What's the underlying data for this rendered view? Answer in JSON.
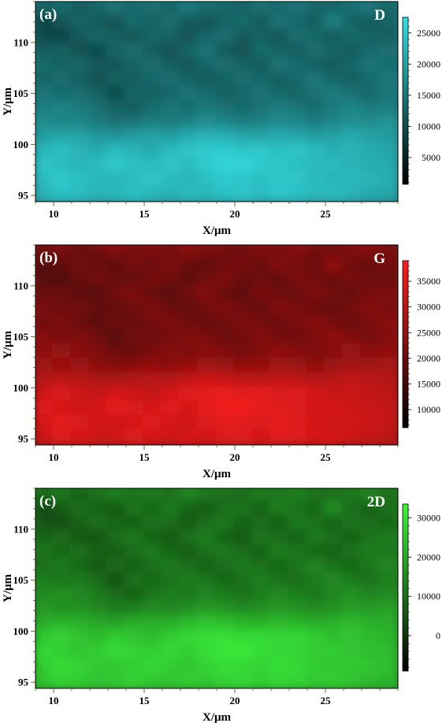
{
  "chart_data": [
    {
      "type": "heatmap",
      "panel_label": "(a)",
      "band_label": "D",
      "xlabel": "X/μm",
      "ylabel": "Y/μm",
      "xlim": [
        9,
        29
      ],
      "ylim": [
        94.4,
        114
      ],
      "x_ticks": [
        "10",
        "15",
        "20",
        "25"
      ],
      "y_ticks": [
        "95",
        "100",
        "105",
        "110"
      ],
      "colorbar": {
        "range": [
          700,
          27500
        ],
        "ticks": [
          "5000",
          "10000",
          "15000",
          "20000",
          "25000"
        ],
        "tick_values": [
          5000,
          10000,
          15000,
          20000,
          25000
        ],
        "low_color": "#000000",
        "high_color": "#33e0e4"
      },
      "intensity_rows_top_to_bottom": [
        [
          0.42,
          0.48,
          0.4,
          0.45,
          0.52,
          0.46,
          0.5,
          0.44,
          0.55,
          0.48,
          0.46,
          0.43,
          0.5,
          0.47,
          0.52,
          0.45,
          0.44,
          0.49,
          0.53,
          0.46
        ],
        [
          0.3,
          0.38,
          0.45,
          0.4,
          0.36,
          0.48,
          0.42,
          0.5,
          0.4,
          0.37,
          0.44,
          0.48,
          0.4,
          0.52,
          0.46,
          0.42,
          0.58,
          0.44,
          0.4,
          0.45
        ],
        [
          0.34,
          0.3,
          0.4,
          0.46,
          0.42,
          0.38,
          0.47,
          0.44,
          0.36,
          0.45,
          0.5,
          0.4,
          0.44,
          0.38,
          0.5,
          0.46,
          0.4,
          0.48,
          0.44,
          0.42
        ],
        [
          0.4,
          0.44,
          0.36,
          0.33,
          0.45,
          0.5,
          0.4,
          0.36,
          0.46,
          0.52,
          0.4,
          0.36,
          0.48,
          0.44,
          0.4,
          0.5,
          0.45,
          0.4,
          0.47,
          0.5
        ],
        [
          0.48,
          0.42,
          0.46,
          0.4,
          0.38,
          0.44,
          0.5,
          0.42,
          0.38,
          0.46,
          0.5,
          0.44,
          0.4,
          0.52,
          0.48,
          0.42,
          0.4,
          0.46,
          0.52,
          0.48
        ],
        [
          0.44,
          0.5,
          0.42,
          0.36,
          0.44,
          0.4,
          0.46,
          0.5,
          0.44,
          0.4,
          0.44,
          0.5,
          0.46,
          0.42,
          0.48,
          0.54,
          0.46,
          0.42,
          0.48,
          0.54
        ],
        [
          0.52,
          0.46,
          0.5,
          0.44,
          0.32,
          0.46,
          0.42,
          0.46,
          0.52,
          0.48,
          0.42,
          0.46,
          0.52,
          0.46,
          0.44,
          0.5,
          0.56,
          0.5,
          0.46,
          0.52
        ],
        [
          0.56,
          0.6,
          0.54,
          0.5,
          0.44,
          0.4,
          0.48,
          0.52,
          0.48,
          0.54,
          0.5,
          0.46,
          0.5,
          0.56,
          0.52,
          0.48,
          0.54,
          0.6,
          0.54,
          0.56
        ],
        [
          0.62,
          0.58,
          0.6,
          0.55,
          0.5,
          0.52,
          0.56,
          0.54,
          0.58,
          0.62,
          0.6,
          0.56,
          0.58,
          0.62,
          0.6,
          0.56,
          0.6,
          0.64,
          0.62,
          0.66
        ],
        [
          0.7,
          0.74,
          0.72,
          0.68,
          0.66,
          0.7,
          0.72,
          0.7,
          0.76,
          0.8,
          0.78,
          0.74,
          0.72,
          0.76,
          0.74,
          0.7,
          0.72,
          0.76,
          0.72,
          0.7
        ],
        [
          0.82,
          0.86,
          0.8,
          0.76,
          0.84,
          0.8,
          0.76,
          0.84,
          0.88,
          0.9,
          0.92,
          0.88,
          0.9,
          0.86,
          0.88,
          0.84,
          0.78,
          0.8,
          0.76,
          0.74
        ],
        [
          0.88,
          0.84,
          0.8,
          0.84,
          0.9,
          0.86,
          0.84,
          0.88,
          0.84,
          0.9,
          0.94,
          0.96,
          0.9,
          0.88,
          0.86,
          0.82,
          0.84,
          0.8,
          0.78,
          0.76
        ],
        [
          0.84,
          0.9,
          0.86,
          0.82,
          0.8,
          0.84,
          0.88,
          0.84,
          0.8,
          0.86,
          0.9,
          0.88,
          0.86,
          0.9,
          0.88,
          0.84,
          0.8,
          0.82,
          0.8,
          0.78
        ],
        [
          0.8,
          0.86,
          0.84,
          0.8,
          0.82,
          0.86,
          0.82,
          0.8,
          0.84,
          0.82,
          0.86,
          0.88,
          0.84,
          0.88,
          0.86,
          0.82,
          0.84,
          0.8,
          0.76,
          0.74
        ]
      ]
    },
    {
      "type": "heatmap",
      "panel_label": "(b)",
      "band_label": "G",
      "xlabel": "X/μm",
      "ylabel": "Y/μm",
      "xlim": [
        9,
        29
      ],
      "ylim": [
        94.4,
        114
      ],
      "x_ticks": [
        "10",
        "15",
        "20",
        "25"
      ],
      "y_ticks": [
        "95",
        "100",
        "105",
        "110"
      ],
      "colorbar": {
        "range": [
          6500,
          39000
        ],
        "ticks": [
          "10000",
          "15000",
          "20000",
          "25000",
          "30000",
          "35000"
        ],
        "tick_values": [
          10000,
          15000,
          20000,
          25000,
          30000,
          35000
        ],
        "low_color": "#000000",
        "high_color": "#ff1e1e"
      },
      "intensity_rows_top_to_bottom": [
        [
          0.42,
          0.48,
          0.4,
          0.45,
          0.52,
          0.46,
          0.5,
          0.44,
          0.55,
          0.48,
          0.46,
          0.43,
          0.5,
          0.47,
          0.52,
          0.45,
          0.44,
          0.49,
          0.53,
          0.46
        ],
        [
          0.3,
          0.38,
          0.45,
          0.4,
          0.36,
          0.48,
          0.42,
          0.5,
          0.4,
          0.37,
          0.44,
          0.48,
          0.4,
          0.52,
          0.46,
          0.42,
          0.58,
          0.44,
          0.4,
          0.45
        ],
        [
          0.34,
          0.3,
          0.4,
          0.46,
          0.42,
          0.38,
          0.47,
          0.44,
          0.36,
          0.45,
          0.5,
          0.4,
          0.44,
          0.38,
          0.5,
          0.46,
          0.4,
          0.48,
          0.44,
          0.42
        ],
        [
          0.4,
          0.44,
          0.36,
          0.33,
          0.45,
          0.5,
          0.4,
          0.36,
          0.46,
          0.52,
          0.4,
          0.36,
          0.48,
          0.44,
          0.4,
          0.5,
          0.45,
          0.4,
          0.47,
          0.5
        ],
        [
          0.48,
          0.42,
          0.46,
          0.4,
          0.38,
          0.44,
          0.5,
          0.42,
          0.38,
          0.46,
          0.5,
          0.44,
          0.4,
          0.52,
          0.48,
          0.42,
          0.4,
          0.46,
          0.52,
          0.48
        ],
        [
          0.44,
          0.5,
          0.42,
          0.36,
          0.44,
          0.4,
          0.46,
          0.5,
          0.44,
          0.4,
          0.44,
          0.5,
          0.46,
          0.42,
          0.48,
          0.54,
          0.46,
          0.42,
          0.48,
          0.54
        ],
        [
          0.52,
          0.46,
          0.5,
          0.44,
          0.32,
          0.46,
          0.42,
          0.46,
          0.52,
          0.48,
          0.42,
          0.46,
          0.52,
          0.46,
          0.44,
          0.5,
          0.56,
          0.5,
          0.46,
          0.52
        ],
        [
          0.56,
          0.6,
          0.54,
          0.5,
          0.44,
          0.4,
          0.48,
          0.52,
          0.48,
          0.54,
          0.5,
          0.46,
          0.5,
          0.56,
          0.52,
          0.48,
          0.54,
          0.6,
          0.54,
          0.56
        ],
        [
          0.62,
          0.58,
          0.6,
          0.55,
          0.5,
          0.52,
          0.56,
          0.54,
          0.58,
          0.62,
          0.6,
          0.56,
          0.58,
          0.62,
          0.6,
          0.56,
          0.6,
          0.64,
          0.62,
          0.66
        ],
        [
          0.7,
          0.74,
          0.72,
          0.68,
          0.66,
          0.7,
          0.72,
          0.7,
          0.76,
          0.8,
          0.78,
          0.74,
          0.72,
          0.76,
          0.74,
          0.7,
          0.72,
          0.76,
          0.72,
          0.7
        ],
        [
          0.82,
          0.86,
          0.8,
          0.76,
          0.84,
          0.8,
          0.76,
          0.84,
          0.88,
          0.9,
          0.92,
          0.88,
          0.9,
          0.86,
          0.88,
          0.84,
          0.78,
          0.8,
          0.76,
          0.74
        ],
        [
          0.88,
          0.84,
          0.8,
          0.84,
          0.9,
          0.86,
          0.84,
          0.88,
          0.84,
          0.9,
          0.94,
          0.96,
          0.9,
          0.88,
          0.86,
          0.82,
          0.84,
          0.8,
          0.78,
          0.76
        ],
        [
          0.84,
          0.9,
          0.86,
          0.82,
          0.8,
          0.84,
          0.88,
          0.84,
          0.8,
          0.86,
          0.9,
          0.88,
          0.86,
          0.9,
          0.88,
          0.84,
          0.8,
          0.82,
          0.8,
          0.78
        ],
        [
          0.8,
          0.86,
          0.84,
          0.8,
          0.82,
          0.86,
          0.82,
          0.8,
          0.84,
          0.82,
          0.86,
          0.88,
          0.84,
          0.88,
          0.86,
          0.82,
          0.84,
          0.8,
          0.76,
          0.74
        ]
      ]
    },
    {
      "type": "heatmap",
      "panel_label": "(c)",
      "band_label": "2D",
      "xlabel": "X/μm",
      "ylabel": "Y/μm",
      "xlim": [
        9,
        29
      ],
      "ylim": [
        94.4,
        114
      ],
      "x_ticks": [
        "10",
        "15",
        "20",
        "25"
      ],
      "y_ticks": [
        "95",
        "100",
        "105",
        "110"
      ],
      "colorbar": {
        "range": [
          -9000,
          33500
        ],
        "ticks": [
          "0",
          "10000",
          "20000",
          "30000"
        ],
        "tick_values": [
          0,
          10000,
          20000,
          30000
        ],
        "low_color": "#000000",
        "high_color": "#3cf53c"
      },
      "intensity_rows_top_to_bottom": [
        [
          0.42,
          0.48,
          0.4,
          0.45,
          0.52,
          0.46,
          0.5,
          0.44,
          0.55,
          0.48,
          0.46,
          0.43,
          0.5,
          0.47,
          0.52,
          0.45,
          0.44,
          0.49,
          0.53,
          0.46
        ],
        [
          0.3,
          0.38,
          0.45,
          0.4,
          0.36,
          0.48,
          0.42,
          0.5,
          0.4,
          0.37,
          0.44,
          0.48,
          0.4,
          0.52,
          0.46,
          0.42,
          0.58,
          0.44,
          0.4,
          0.45
        ],
        [
          0.34,
          0.3,
          0.4,
          0.46,
          0.42,
          0.38,
          0.47,
          0.44,
          0.36,
          0.45,
          0.5,
          0.4,
          0.44,
          0.38,
          0.5,
          0.46,
          0.4,
          0.48,
          0.44,
          0.42
        ],
        [
          0.4,
          0.44,
          0.36,
          0.33,
          0.45,
          0.5,
          0.4,
          0.36,
          0.46,
          0.52,
          0.4,
          0.36,
          0.48,
          0.44,
          0.4,
          0.5,
          0.45,
          0.4,
          0.47,
          0.5
        ],
        [
          0.48,
          0.42,
          0.46,
          0.4,
          0.38,
          0.44,
          0.5,
          0.42,
          0.38,
          0.46,
          0.5,
          0.44,
          0.4,
          0.52,
          0.48,
          0.42,
          0.4,
          0.46,
          0.52,
          0.48
        ],
        [
          0.44,
          0.5,
          0.42,
          0.36,
          0.44,
          0.4,
          0.46,
          0.5,
          0.44,
          0.4,
          0.44,
          0.5,
          0.46,
          0.42,
          0.48,
          0.54,
          0.46,
          0.42,
          0.48,
          0.54
        ],
        [
          0.52,
          0.46,
          0.5,
          0.44,
          0.32,
          0.46,
          0.42,
          0.46,
          0.52,
          0.48,
          0.42,
          0.46,
          0.52,
          0.46,
          0.44,
          0.5,
          0.56,
          0.5,
          0.46,
          0.52
        ],
        [
          0.56,
          0.6,
          0.54,
          0.5,
          0.44,
          0.4,
          0.48,
          0.52,
          0.48,
          0.54,
          0.5,
          0.46,
          0.5,
          0.56,
          0.52,
          0.48,
          0.54,
          0.6,
          0.54,
          0.56
        ],
        [
          0.62,
          0.58,
          0.6,
          0.55,
          0.5,
          0.52,
          0.56,
          0.54,
          0.58,
          0.62,
          0.6,
          0.56,
          0.58,
          0.62,
          0.6,
          0.56,
          0.6,
          0.64,
          0.62,
          0.66
        ],
        [
          0.7,
          0.74,
          0.72,
          0.68,
          0.66,
          0.7,
          0.72,
          0.7,
          0.76,
          0.8,
          0.78,
          0.74,
          0.72,
          0.76,
          0.74,
          0.7,
          0.72,
          0.76,
          0.72,
          0.7
        ],
        [
          0.82,
          0.86,
          0.8,
          0.76,
          0.84,
          0.8,
          0.76,
          0.84,
          0.88,
          0.9,
          0.92,
          0.88,
          0.9,
          0.86,
          0.88,
          0.84,
          0.78,
          0.8,
          0.76,
          0.74
        ],
        [
          0.88,
          0.84,
          0.8,
          0.84,
          0.9,
          0.86,
          0.84,
          0.88,
          0.84,
          0.9,
          0.94,
          0.96,
          0.9,
          0.88,
          0.86,
          0.82,
          0.84,
          0.8,
          0.78,
          0.76
        ],
        [
          0.84,
          0.9,
          0.86,
          0.82,
          0.8,
          0.84,
          0.88,
          0.84,
          0.8,
          0.86,
          0.9,
          0.88,
          0.86,
          0.9,
          0.88,
          0.84,
          0.8,
          0.82,
          0.8,
          0.78
        ],
        [
          0.8,
          0.86,
          0.84,
          0.8,
          0.82,
          0.86,
          0.82,
          0.8,
          0.84,
          0.82,
          0.86,
          0.88,
          0.84,
          0.88,
          0.86,
          0.82,
          0.84,
          0.8,
          0.76,
          0.74
        ]
      ]
    }
  ]
}
